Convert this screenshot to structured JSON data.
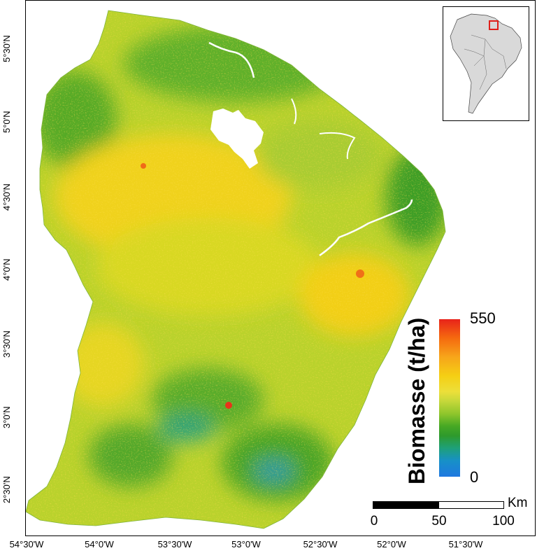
{
  "colors": {
    "low": "#1f78e0",
    "mid_green": "#46a824",
    "mid_yellow": "#f5cf14",
    "high": "#e8231a",
    "inset_land": "#d9d9d9",
    "inset_highlight": "#e0201a"
  },
  "axes": {
    "longitude_ticks": [
      "54°30'W",
      "54°0'W",
      "53°30'W",
      "53°0'W",
      "52°30'W",
      "52°0'W",
      "51°30'W"
    ],
    "latitude_ticks": [
      "5°30'N",
      "5°0'N",
      "4°30'N",
      "4°0'N",
      "3°30'N",
      "3°0'N",
      "2°30'N"
    ]
  },
  "legend": {
    "title": "Biomasse (t/ha)",
    "max_label": "550",
    "min_label": "0",
    "max_value": 550,
    "min_value": 0
  },
  "scale_bar": {
    "labels": [
      "0",
      "50",
      "100"
    ],
    "unit": "Km"
  },
  "inset": {
    "icon": "south-america-locator-icon"
  }
}
